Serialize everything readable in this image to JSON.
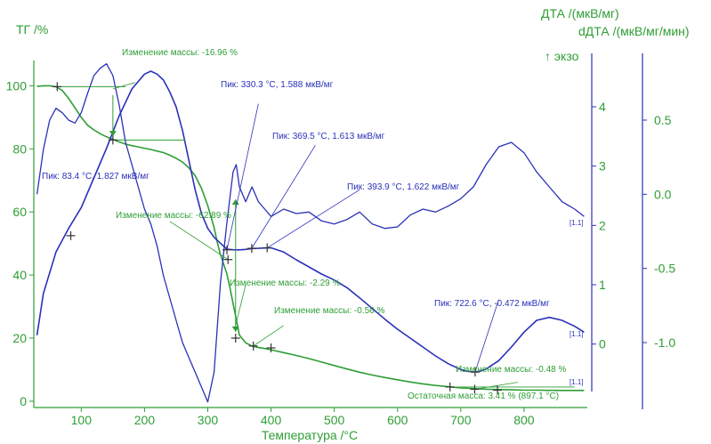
{
  "chart_data": {
    "type": "line",
    "xlabel": "Температура /°C",
    "y_left_label": "ТГ /%",
    "y_right1_label": "ДТА /(мкВ/мг)",
    "y_right2_label": "dДТА /(мкВ/мг/мин)",
    "exo_label": "↑ экзо",
    "x_ticks": [
      "100",
      "200",
      "300",
      "400",
      "500",
      "600",
      "700",
      "800"
    ],
    "y_left_ticks": [
      "0",
      "20",
      "40",
      "60",
      "80",
      "100"
    ],
    "y_right1_ticks": [
      "0",
      "1",
      "2",
      "3",
      "4"
    ],
    "y_right2_ticks": [
      "-1.0",
      "-0.5",
      "0.0",
      "0.5"
    ],
    "xlim": [
      25,
      900
    ],
    "y_left_lim": [
      -2,
      108
    ],
    "y_right1_lim": [
      -0.8,
      4.9
    ],
    "y_right2_lim": [
      -1.45,
      0.95
    ],
    "colors": {
      "tg": "#2e9e35",
      "dta": "#2a31b8",
      "ddta": "#2a31b8"
    },
    "series": [
      {
        "key": "tg",
        "axis": "left",
        "x": [
          30,
          40,
          50,
          60,
          70,
          80,
          90,
          100,
          110,
          120,
          130,
          140,
          150,
          160,
          170,
          180,
          190,
          200,
          210,
          220,
          230,
          240,
          250,
          260,
          270,
          280,
          290,
          300,
          310,
          315,
          320,
          325,
          330,
          335,
          340,
          345,
          350,
          360,
          370,
          380,
          390,
          400,
          420,
          440,
          460,
          480,
          500,
          520,
          540,
          560,
          580,
          600,
          620,
          640,
          660,
          680,
          700,
          720,
          740,
          760,
          780,
          800,
          820,
          840,
          860,
          880,
          895
        ],
        "y": [
          99.8,
          100,
          100,
          99.7,
          98.5,
          96,
          93,
          90,
          87.5,
          86,
          84.8,
          83.8,
          83,
          82.2,
          81.5,
          81,
          80.6,
          80.2,
          79.8,
          79.3,
          78.8,
          78,
          77,
          75.8,
          74,
          71.5,
          67.5,
          62,
          55,
          50.5,
          46.5,
          43.5,
          40.5,
          36,
          31,
          26,
          21,
          18.5,
          17.5,
          17,
          16.7,
          16.3,
          15.4,
          14.5,
          13.5,
          12.4,
          11.3,
          10.2,
          9.2,
          8.3,
          7.5,
          6.8,
          6.1,
          5.5,
          5,
          4.6,
          4.2,
          4,
          3.8,
          3.7,
          3.6,
          3.5,
          3.5,
          3.45,
          3.42,
          3.41,
          3.41
        ]
      },
      {
        "key": "dta",
        "axis": "right1",
        "x": [
          30,
          40,
          60,
          80,
          100,
          120,
          140,
          160,
          180,
          200,
          210,
          220,
          230,
          240,
          250,
          260,
          270,
          280,
          290,
          300,
          310,
          320,
          330,
          340,
          350,
          360,
          370,
          380,
          390,
          400,
          420,
          440,
          460,
          480,
          500,
          520,
          540,
          560,
          580,
          600,
          620,
          640,
          660,
          680,
          700,
          710,
          722.6,
          730,
          740,
          760,
          780,
          800,
          820,
          840,
          860,
          880,
          895
        ],
        "y": [
          0.15,
          0.85,
          1.55,
          1.95,
          2.3,
          2.8,
          3.3,
          3.85,
          4.3,
          4.55,
          4.6,
          4.55,
          4.45,
          4.25,
          4.0,
          3.6,
          3.1,
          2.6,
          2.2,
          1.95,
          1.8,
          1.7,
          1.6,
          1.59,
          1.588,
          1.595,
          1.61,
          1.613,
          1.62,
          1.622,
          1.55,
          1.42,
          1.3,
          1.18,
          1.08,
          0.95,
          0.78,
          0.6,
          0.42,
          0.25,
          0.1,
          -0.05,
          -0.2,
          -0.33,
          -0.43,
          -0.46,
          -0.472,
          -0.46,
          -0.42,
          -0.28,
          -0.05,
          0.2,
          0.4,
          0.45,
          0.4,
          0.3,
          0.2
        ]
      },
      {
        "key": "ddta",
        "axis": "right2",
        "x": [
          30,
          40,
          50,
          60,
          70,
          80,
          90,
          100,
          110,
          120,
          130,
          140,
          150,
          160,
          170,
          180,
          190,
          200,
          210,
          220,
          230,
          240,
          250,
          260,
          270,
          280,
          290,
          300,
          310,
          320,
          330,
          340,
          345,
          350,
          360,
          370,
          380,
          390,
          400,
          420,
          440,
          460,
          480,
          500,
          520,
          540,
          560,
          580,
          600,
          620,
          640,
          660,
          680,
          700,
          720,
          740,
          760,
          780,
          800,
          820,
          840,
          860,
          880,
          895
        ],
        "y": [
          0.0,
          0.3,
          0.5,
          0.58,
          0.55,
          0.5,
          0.48,
          0.55,
          0.68,
          0.8,
          0.85,
          0.88,
          0.8,
          0.6,
          0.35,
          0.2,
          0.05,
          -0.1,
          -0.2,
          -0.35,
          -0.55,
          -0.7,
          -0.85,
          -1.0,
          -1.1,
          -1.2,
          -1.3,
          -1.4,
          -1.2,
          -0.6,
          -0.2,
          0.15,
          0.2,
          0.05,
          -0.05,
          0.05,
          -0.05,
          -0.1,
          -0.15,
          -0.1,
          -0.13,
          -0.12,
          -0.18,
          -0.2,
          -0.17,
          -0.12,
          -0.2,
          -0.23,
          -0.22,
          -0.14,
          -0.1,
          -0.12,
          -0.08,
          -0.03,
          0.05,
          0.2,
          0.32,
          0.35,
          0.28,
          0.15,
          0.05,
          -0.05,
          -0.1,
          -0.15
        ]
      }
    ],
    "tg_markers": [
      {
        "x": 62,
        "y": 99.7
      },
      {
        "x": 150,
        "y": 82.8
      },
      {
        "x": 332,
        "y": 44.9
      },
      {
        "x": 344,
        "y": 20.0
      },
      {
        "x": 372,
        "y": 17.5
      },
      {
        "x": 400,
        "y": 16.9
      },
      {
        "x": 683,
        "y": 4.5
      },
      {
        "x": 722,
        "y": 3.8
      },
      {
        "x": 758,
        "y": 3.5
      }
    ],
    "dta_markers": [
      {
        "x": 83.4,
        "y": 1.827
      },
      {
        "x": 330.3,
        "y": 1.588
      },
      {
        "x": 369.5,
        "y": 1.613
      },
      {
        "x": 393.9,
        "y": 1.622
      },
      {
        "x": 722.6,
        "y": -0.472
      }
    ],
    "annotations": {
      "mass1": "Изменение массы: -16.96 %",
      "mass2": "Изменение массы: -62.89 %",
      "mass3": "Изменение массы: -2.29 %",
      "mass4": "Изменение массы: -0.56 %",
      "mass5": "Изменение массы: -0.48 %",
      "residual": "Остаточная масса: 3.41 % (897.1 °C)",
      "peak1": "Пик: 83.4 °C, 1.827 мкВ/мг",
      "peak2": "Пик: 330.3 °C, 1.588 мкВ/мг",
      "peak3": "Пик: 369.5 °C, 1.613 мкВ/мг",
      "peak4": "Пик: 393.9 °C, 1.622 мкВ/мг",
      "peak5": "Пик: 722.6 °C, -0.472 мкВ/мг"
    },
    "curve_tags": [
      "[1.1]",
      "[1.1]",
      "[1.1]"
    ]
  }
}
